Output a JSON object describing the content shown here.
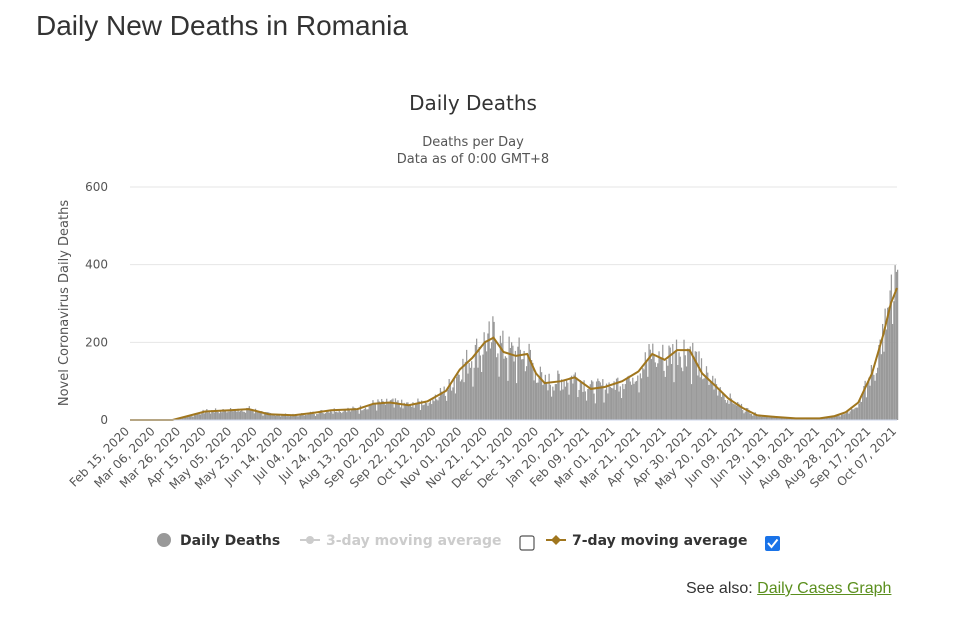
{
  "page_title": "Daily New Deaths in Romania",
  "see_also": {
    "label": "See also:",
    "link_text": "Daily Cases Graph"
  },
  "chart_data": {
    "type": "bar",
    "title": "Daily Deaths",
    "subtitle_line1": "Deaths per Day",
    "subtitle_line2": "Data as of 0:00 GMT+8",
    "ylabel": "Novel Coronavirus Daily Deaths",
    "xlabel": "",
    "ylim": [
      0,
      600
    ],
    "yticks": [
      "0",
      "200",
      "400",
      "600"
    ],
    "grid": true,
    "start_date": "2020-02-15",
    "end_date": "2021-10-21",
    "tick_labels": [
      "Feb 15, 2020",
      "Mar 06, 2020",
      "Mar 26, 2020",
      "Apr 15, 2020",
      "May 05, 2020",
      "May 25, 2020",
      "Jun 14, 2020",
      "Jul 04, 2020",
      "Jul 24, 2020",
      "Aug 13, 2020",
      "Sep 02, 2020",
      "Sep 22, 2020",
      "Oct 12, 2020",
      "Nov 01, 2020",
      "Nov 21, 2020",
      "Dec 11, 2020",
      "Dec 31, 2020",
      "Jan 20, 2021",
      "Feb 09, 2021",
      "Mar 01, 2021",
      "Mar 21, 2021",
      "Apr 10, 2021",
      "Apr 30, 2021",
      "May 20, 2021",
      "Jun 09, 2021",
      "Jun 29, 2021",
      "Jul 19, 2021",
      "Aug 08, 2021",
      "Aug 28, 2021",
      "Sep 17, 2021",
      "Oct 07, 2021"
    ],
    "series_bars": {
      "name": "Daily Deaths",
      "color": "#999999"
    },
    "series_ma3": {
      "name": "3-day moving average",
      "color": "#cccccc",
      "enabled": false
    },
    "series_ma7": {
      "name": "7-day moving average",
      "color": "#a0761e",
      "enabled": true
    },
    "trend_points_7day": [
      [
        "2020-02-15",
        0
      ],
      [
        "2020-03-20",
        0
      ],
      [
        "2020-04-01",
        10
      ],
      [
        "2020-04-15",
        22
      ],
      [
        "2020-05-05",
        25
      ],
      [
        "2020-05-20",
        28
      ],
      [
        "2020-06-05",
        15
      ],
      [
        "2020-06-25",
        12
      ],
      [
        "2020-07-10",
        18
      ],
      [
        "2020-07-25",
        25
      ],
      [
        "2020-08-15",
        28
      ],
      [
        "2020-08-28",
        42
      ],
      [
        "2020-09-10",
        45
      ],
      [
        "2020-09-25",
        38
      ],
      [
        "2020-10-10",
        48
      ],
      [
        "2020-10-25",
        75
      ],
      [
        "2020-11-05",
        130
      ],
      [
        "2020-11-15",
        160
      ],
      [
        "2020-11-25",
        200
      ],
      [
        "2020-12-02",
        212
      ],
      [
        "2020-12-10",
        175
      ],
      [
        "2020-12-20",
        165
      ],
      [
        "2020-12-29",
        170
      ],
      [
        "2021-01-05",
        120
      ],
      [
        "2021-01-12",
        95
      ],
      [
        "2021-01-25",
        100
      ],
      [
        "2021-02-05",
        110
      ],
      [
        "2021-02-18",
        80
      ],
      [
        "2021-03-01",
        85
      ],
      [
        "2021-03-15",
        100
      ],
      [
        "2021-03-28",
        125
      ],
      [
        "2021-04-08",
        170
      ],
      [
        "2021-04-18",
        155
      ],
      [
        "2021-04-28",
        180
      ],
      [
        "2021-05-08",
        180
      ],
      [
        "2021-05-18",
        120
      ],
      [
        "2021-05-28",
        90
      ],
      [
        "2021-06-08",
        55
      ],
      [
        "2021-06-20",
        30
      ],
      [
        "2021-07-01",
        12
      ],
      [
        "2021-07-15",
        8
      ],
      [
        "2021-08-01",
        4
      ],
      [
        "2021-08-20",
        4
      ],
      [
        "2021-09-01",
        10
      ],
      [
        "2021-09-10",
        20
      ],
      [
        "2021-09-20",
        45
      ],
      [
        "2021-10-01",
        120
      ],
      [
        "2021-10-10",
        220
      ],
      [
        "2021-10-16",
        300
      ],
      [
        "2021-10-21",
        340
      ]
    ]
  },
  "legend": {
    "daily_deaths": "Daily Deaths",
    "ma3": "3-day moving average",
    "ma7": "7-day moving average"
  }
}
